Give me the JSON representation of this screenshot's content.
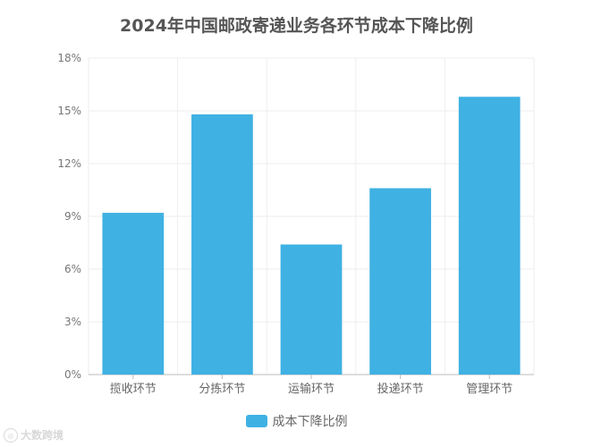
{
  "chart_data": {
    "type": "bar",
    "title": "2024年中国邮政寄递业务各环节成本下降比例",
    "categories": [
      "揽收环节",
      "分拣环节",
      "运输环节",
      "投递环节",
      "管理环节"
    ],
    "series": [
      {
        "name": "成本下降比例",
        "values": [
          9.2,
          14.8,
          7.4,
          10.6,
          15.8
        ],
        "color": "#3fb1e3"
      }
    ],
    "ylim": [
      0,
      18
    ],
    "yticks": [
      0,
      3,
      6,
      9,
      12,
      15,
      18
    ],
    "ytick_labels": [
      "0%",
      "3%",
      "6%",
      "9%",
      "12%",
      "15%",
      "18%"
    ],
    "grid": true,
    "legend_position": "bottom"
  },
  "watermark": {
    "text": "大数跨境"
  }
}
